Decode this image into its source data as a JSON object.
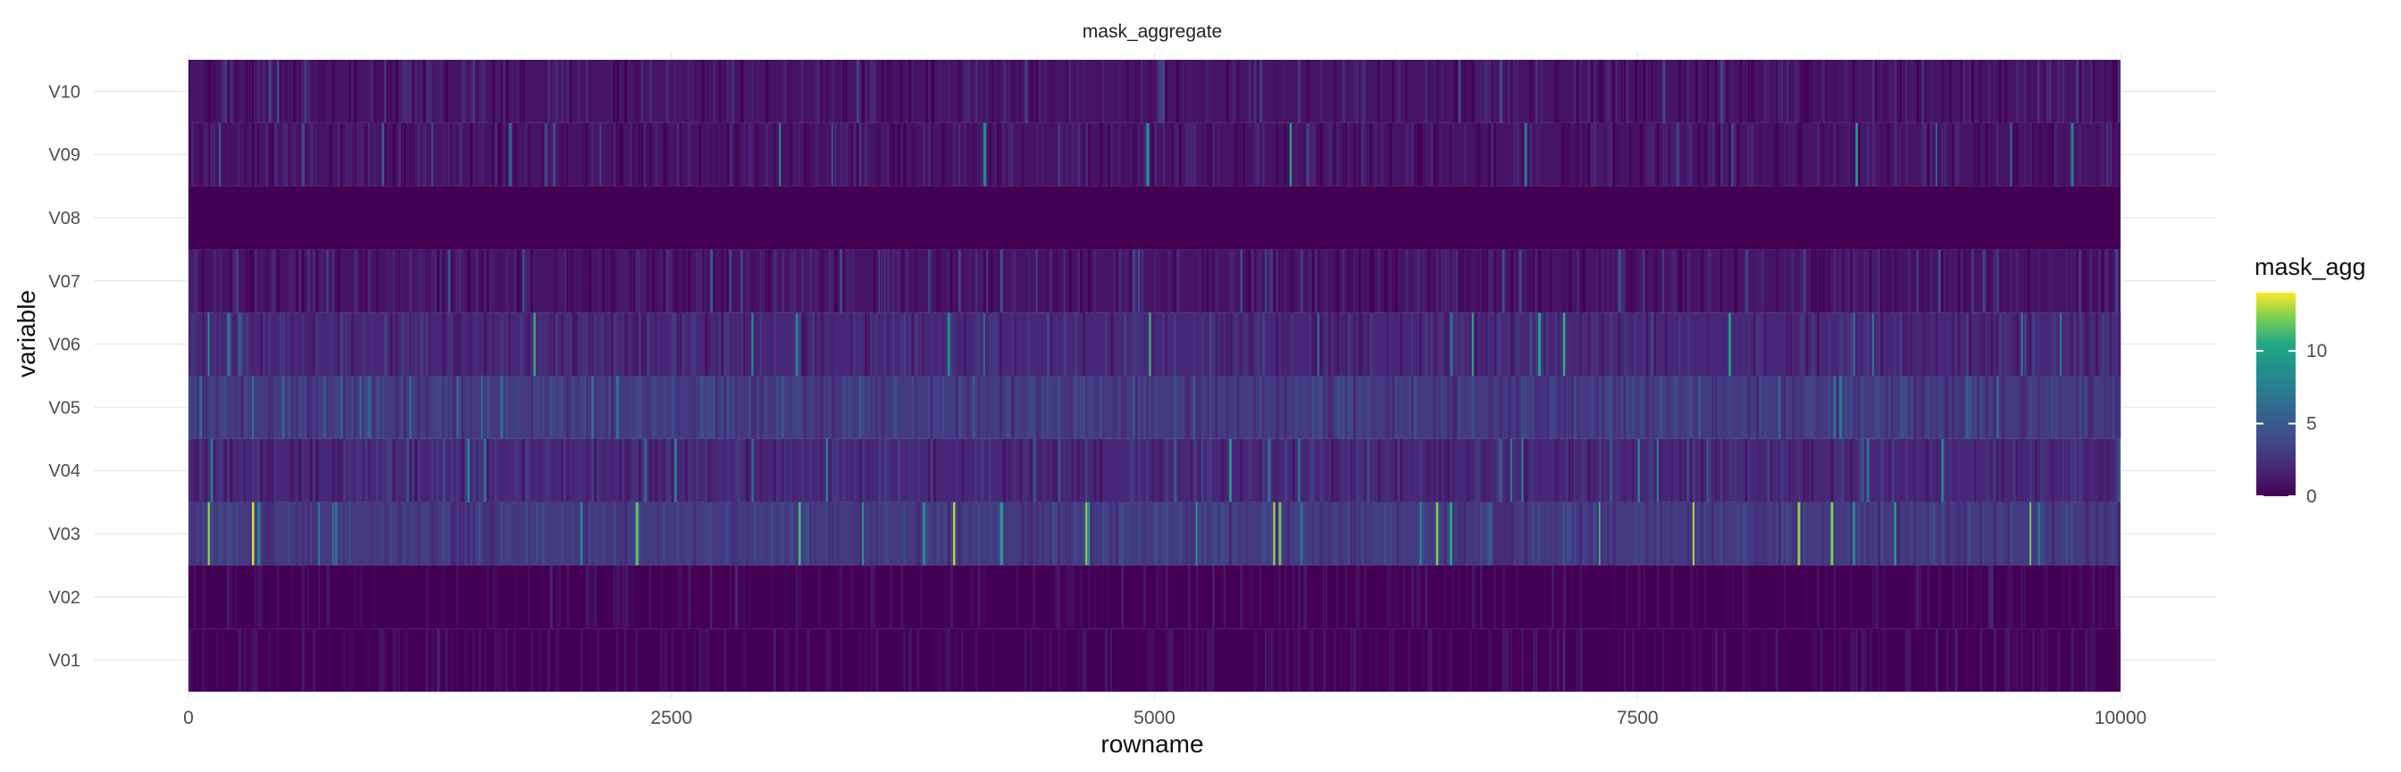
{
  "chart_data": {
    "type": "heatmap",
    "title": "mask_aggregate",
    "xlabel": "rowname",
    "ylabel": "variable",
    "x_range": [
      0,
      10000
    ],
    "x_ticks": [
      0,
      2500,
      5000,
      7500,
      10000
    ],
    "x_tick_labels": [
      "0",
      "2500",
      "5000",
      "7500",
      "10000"
    ],
    "y_categories": [
      "V01",
      "V02",
      "V03",
      "V04",
      "V05",
      "V06",
      "V07",
      "V08",
      "V09",
      "V10"
    ],
    "legend": {
      "title": "mask_agg",
      "ticks": [
        0,
        5,
        10
      ],
      "tick_labels": [
        "0",
        "5",
        "10"
      ],
      "range": [
        0,
        14
      ],
      "colormap": "viridis",
      "placement": "right"
    },
    "row_summaries": [
      {
        "variable": "V01",
        "typical_value": 0,
        "occasional_max": 2
      },
      {
        "variable": "V02",
        "typical_value": 0,
        "occasional_max": 2
      },
      {
        "variable": "V03",
        "typical_value": 3,
        "occasional_max": 14
      },
      {
        "variable": "V04",
        "typical_value": 2,
        "occasional_max": 9
      },
      {
        "variable": "V05",
        "typical_value": 3,
        "occasional_max": 7
      },
      {
        "variable": "V06",
        "typical_value": 2,
        "occasional_max": 12
      },
      {
        "variable": "V07",
        "typical_value": 1,
        "occasional_max": 5
      },
      {
        "variable": "V08",
        "typical_value": 0,
        "occasional_max": 0
      },
      {
        "variable": "V09",
        "typical_value": 1,
        "occasional_max": 11
      },
      {
        "variable": "V10",
        "typical_value": 1,
        "occasional_max": 4
      }
    ],
    "grid": true
  },
  "colors": {
    "background": "#ffffff",
    "gridline": "#ebebeb",
    "viridis_low": "#440154",
    "viridis_high": "#fde725"
  }
}
